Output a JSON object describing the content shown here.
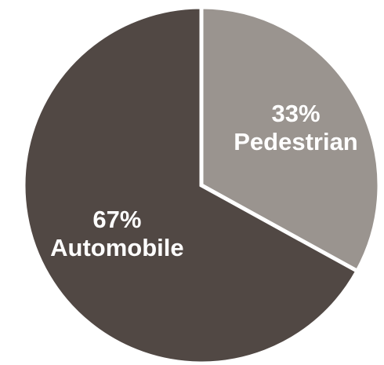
{
  "chart_data": {
    "type": "pie",
    "title": "",
    "start_angle_deg": 0,
    "direction": "clockwise",
    "slices": [
      {
        "name": "Pedestrian",
        "value": 33,
        "percent_label": "33%",
        "color": "#9a948f"
      },
      {
        "name": "Automobile",
        "value": 67,
        "percent_label": "67%",
        "color": "#514844"
      }
    ],
    "slice_separator_color": "#ffffff"
  }
}
